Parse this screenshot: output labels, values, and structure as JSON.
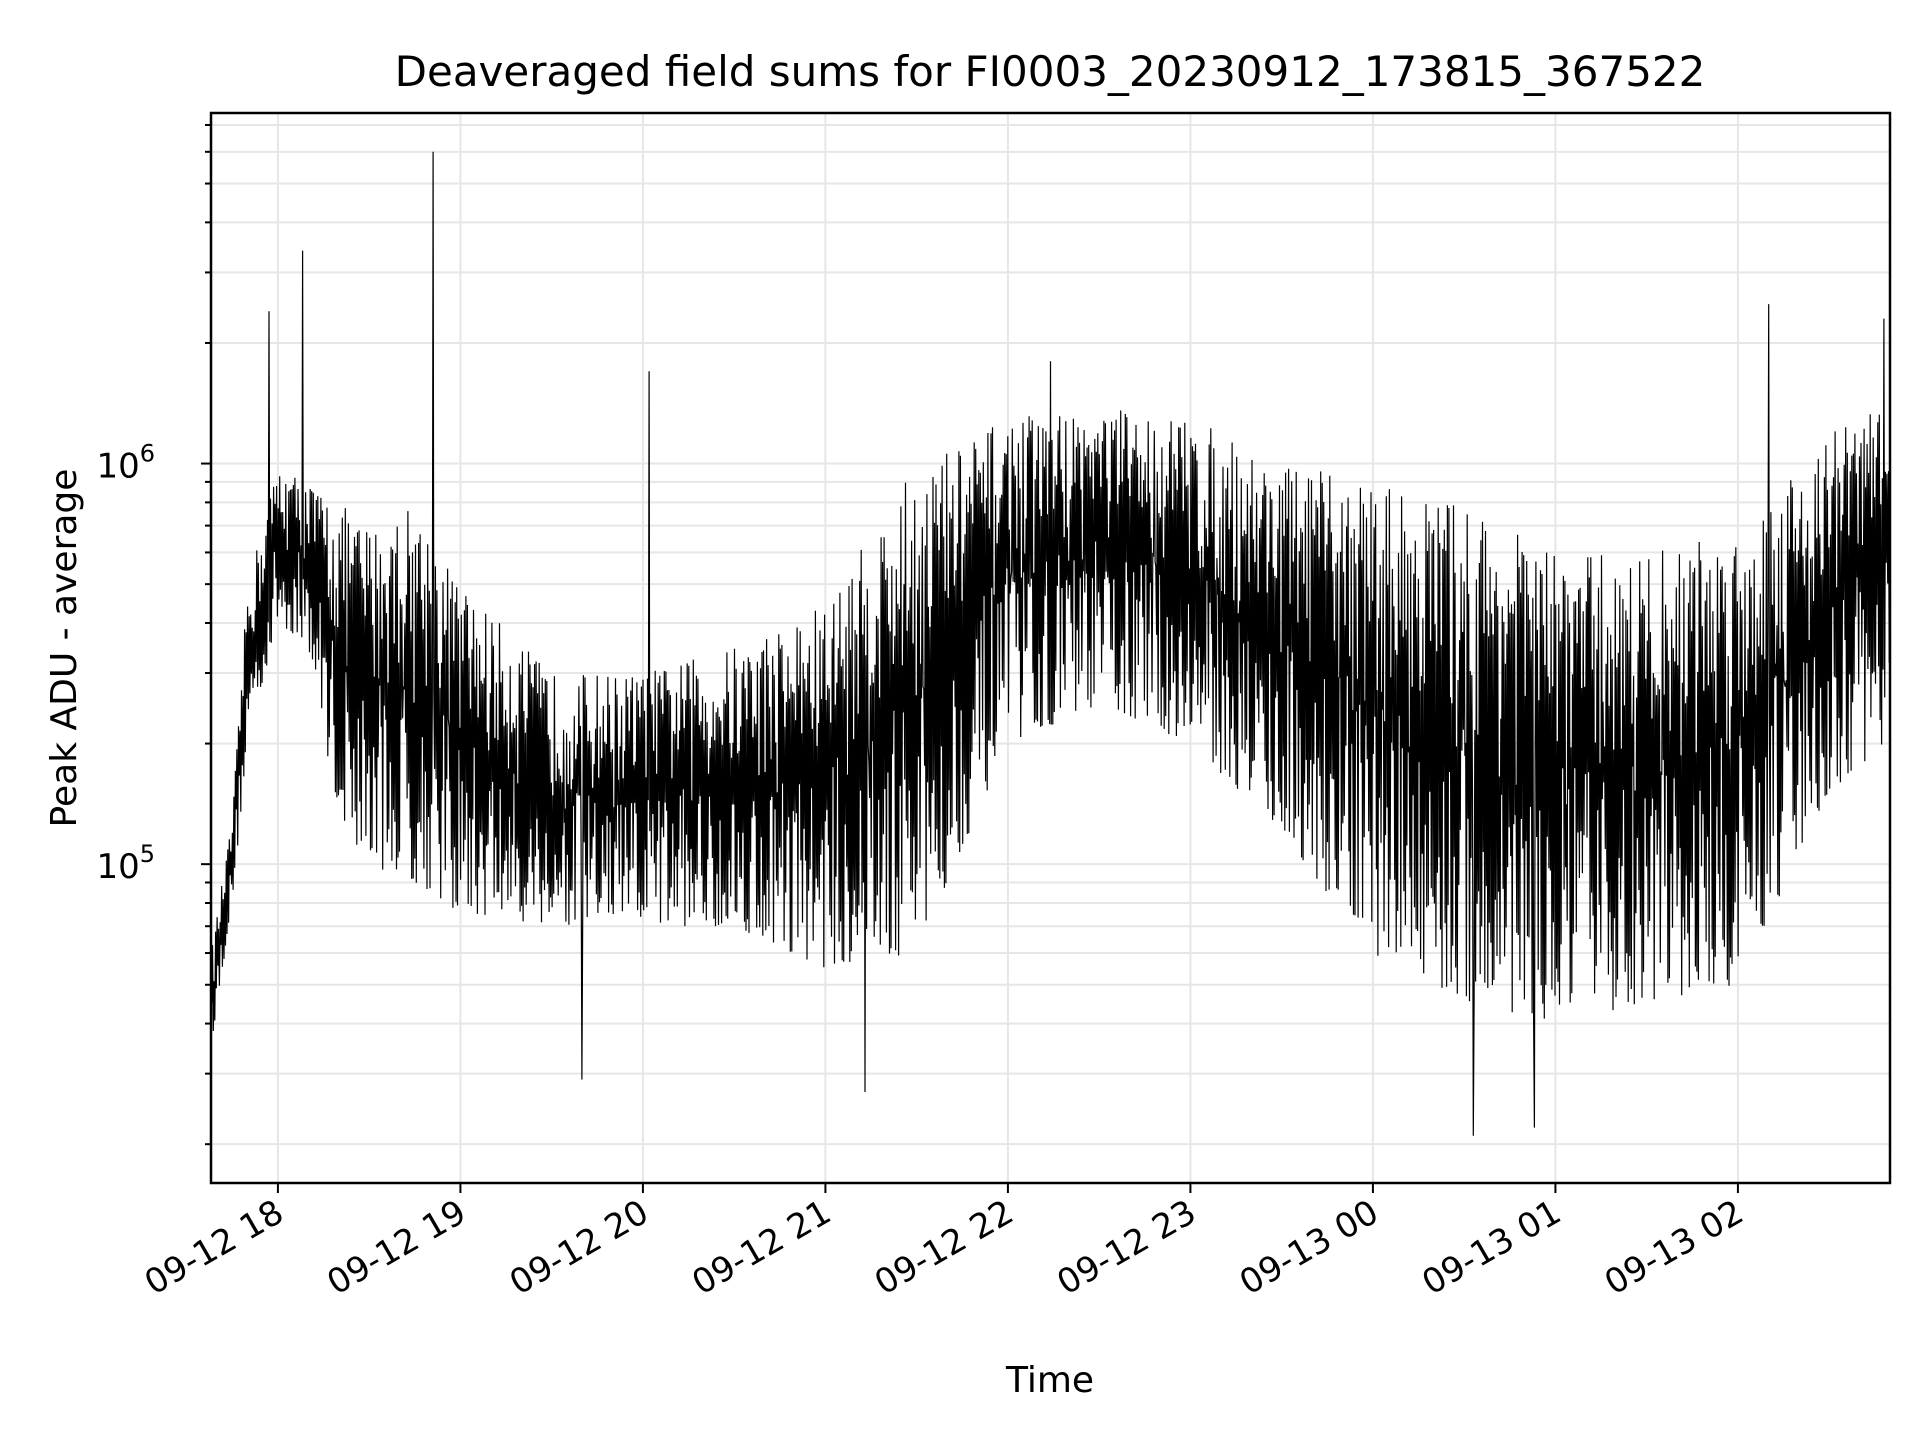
{
  "chart_data": {
    "type": "line",
    "title": "Deaveraged field sums for FI0003_20230912_173815_367522",
    "xlabel": "Time",
    "ylabel": "Peak ADU - average",
    "x_scale": "time",
    "y_scale": "log",
    "xlim": [
      "2023-09-12 17:38",
      "2023-09-13 02:50"
    ],
    "ylim": [
      16000,
      7500000
    ],
    "x_ticks": [
      "09-12 18",
      "09-12 19",
      "09-12 20",
      "09-12 21",
      "09-12 22",
      "09-12 23",
      "09-13 00",
      "09-13 01",
      "09-13 02"
    ],
    "y_ticks": [
      {
        "value": 100000,
        "base": "10",
        "exp": "5"
      },
      {
        "value": 1000000,
        "base": "10",
        "exp": "6"
      }
    ],
    "grid": true,
    "legend": "none",
    "series": [
      {
        "color": "#000000",
        "x": [
          "2023-09-12 17:38",
          "2023-09-12 17:45",
          "2023-09-12 17:50",
          "2023-09-12 18:00",
          "2023-09-12 18:10",
          "2023-09-12 18:20",
          "2023-09-12 18:30",
          "2023-09-12 18:45",
          "2023-09-12 19:00",
          "2023-09-12 19:30",
          "2023-09-12 20:00",
          "2023-09-12 20:30",
          "2023-09-12 21:00",
          "2023-09-12 21:30",
          "2023-09-12 22:00",
          "2023-09-12 22:30",
          "2023-09-12 23:00",
          "2023-09-12 23:30",
          "2023-09-13 00:00",
          "2023-09-13 00:30",
          "2023-09-13 01:00",
          "2023-09-13 01:30",
          "2023-09-13 02:00",
          "2023-09-13 02:30",
          "2023-09-13 02:50"
        ],
        "low": [
          35000,
          80000,
          200000,
          400000,
          350000,
          130000,
          100000,
          90000,
          75000,
          70000,
          70000,
          70000,
          55000,
          60000,
          200000,
          250000,
          200000,
          120000,
          60000,
          45000,
          40000,
          45000,
          50000,
          150000,
          200000
        ],
        "high": [
          60000,
          130000,
          500000,
          1000000,
          900000,
          800000,
          700000,
          800000,
          500000,
          300000,
          300000,
          350000,
          450000,
          1000000,
          1300000,
          1400000,
          1300000,
          1000000,
          900000,
          800000,
          600000,
          600000,
          700000,
          1200000,
          1500000
        ],
        "peaks": [
          {
            "x": "2023-09-12 17:57",
            "y": 2400000
          },
          {
            "x": "2023-09-12 18:08",
            "y": 3400000
          },
          {
            "x": "2023-09-12 18:51",
            "y": 6000000
          },
          {
            "x": "2023-09-12 20:02",
            "y": 1700000
          },
          {
            "x": "2023-09-12 22:14",
            "y": 1800000
          },
          {
            "x": "2023-09-13 02:10",
            "y": 2500000
          },
          {
            "x": "2023-09-13 02:48",
            "y": 2300000
          }
        ],
        "troughs": [
          {
            "x": "2023-09-12 19:40",
            "y": 29000
          },
          {
            "x": "2023-09-12 21:13",
            "y": 27000
          },
          {
            "x": "2023-09-13 00:33",
            "y": 21000
          },
          {
            "x": "2023-09-13 00:53",
            "y": 22000
          }
        ]
      }
    ]
  }
}
